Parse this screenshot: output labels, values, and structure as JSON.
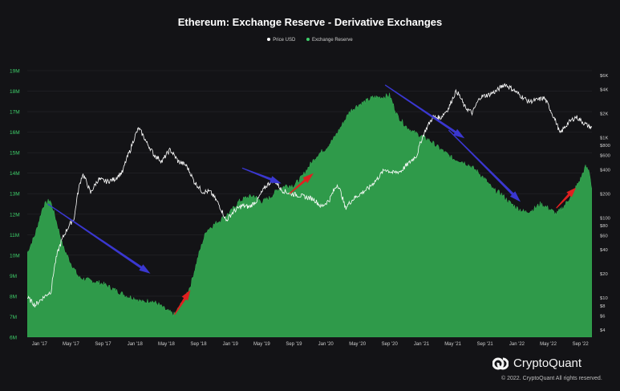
{
  "chart_data": {
    "type": "area",
    "title": "Ethereum: Exchange Reserve - Derivative Exchanges",
    "legend": [
      "Price USD",
      "Exchange Reserve"
    ],
    "legend_position": "top-center",
    "colors": {
      "background": "#131316",
      "reserve_fill": "#2f9a4a",
      "price_line": "#ffffff",
      "left_axis_text": "#3ecf6a",
      "right_axis_text": "#cfcfcf",
      "grid": "#26262b",
      "trend_down": "#3a37d0",
      "trend_up": "#e02020"
    },
    "x_ticks": [
      "Jan '17",
      "May '17",
      "Sep '17",
      "Jan '18",
      "May '18",
      "Sep '18",
      "Jan '19",
      "May '19",
      "Sep '19",
      "Jan '20",
      "May '20",
      "Sep '20",
      "Jan '21",
      "May '21",
      "Sep '21",
      "Jan '22",
      "May '22",
      "Sep '22"
    ],
    "left_axis": {
      "label": "",
      "ylim": [
        6000000,
        19000000
      ],
      "ticks": [
        {
          "v": 6000000,
          "t": "6M"
        },
        {
          "v": 7000000,
          "t": "7M"
        },
        {
          "v": 8000000,
          "t": "8M"
        },
        {
          "v": 9000000,
          "t": "9M"
        },
        {
          "v": 10000000,
          "t": "10M"
        },
        {
          "v": 11000000,
          "t": "11M"
        },
        {
          "v": 12000000,
          "t": "12M"
        },
        {
          "v": 13000000,
          "t": "13M"
        },
        {
          "v": 14000000,
          "t": "14M"
        },
        {
          "v": 15000000,
          "t": "15M"
        },
        {
          "v": 16000000,
          "t": "16M"
        },
        {
          "v": 17000000,
          "t": "17M"
        },
        {
          "v": 18000000,
          "t": "18M"
        },
        {
          "v": 19000000,
          "t": "19M"
        }
      ]
    },
    "right_axis": {
      "label": "",
      "scale": "log",
      "ticks": [
        {
          "v": 4,
          "t": "$4"
        },
        {
          "v": 6,
          "t": "$6"
        },
        {
          "v": 8,
          "t": "$8"
        },
        {
          "v": 10,
          "t": "$10"
        },
        {
          "v": 20,
          "t": "$20"
        },
        {
          "v": 40,
          "t": "$40"
        },
        {
          "v": 60,
          "t": "$60"
        },
        {
          "v": 80,
          "t": "$80"
        },
        {
          "v": 100,
          "t": "$100"
        },
        {
          "v": 200,
          "t": "$200"
        },
        {
          "v": 400,
          "t": "$400"
        },
        {
          "v": 600,
          "t": "$600"
        },
        {
          "v": 800,
          "t": "$800"
        },
        {
          "v": 1000,
          "t": "$1K"
        },
        {
          "v": 2000,
          "t": "$2K"
        },
        {
          "v": 4000,
          "t": "$4K"
        },
        {
          "v": 6000,
          "t": "$6K"
        }
      ]
    },
    "series": [
      {
        "name": "Exchange Reserve",
        "points": [
          [
            "2016-11-15",
            10100000
          ],
          [
            "2016-12-15",
            11000000
          ],
          [
            "2017-01-15",
            12400000
          ],
          [
            "2017-02-10",
            12700000
          ],
          [
            "2017-03-01",
            11900000
          ],
          [
            "2017-04-01",
            10400000
          ],
          [
            "2017-05-01",
            9600000
          ],
          [
            "2017-06-01",
            8900000
          ],
          [
            "2017-07-01",
            8800000
          ],
          [
            "2017-08-01",
            8700000
          ],
          [
            "2017-09-01",
            8600000
          ],
          [
            "2017-10-01",
            8400000
          ],
          [
            "2017-11-01",
            8200000
          ],
          [
            "2017-12-01",
            8000000
          ],
          [
            "2018-01-01",
            7900000
          ],
          [
            "2018-02-01",
            7700000
          ],
          [
            "2018-03-01",
            7800000
          ],
          [
            "2018-04-01",
            7600000
          ],
          [
            "2018-05-01",
            7300000
          ],
          [
            "2018-06-01",
            7100000
          ],
          [
            "2018-07-01",
            7700000
          ],
          [
            "2018-08-01",
            8500000
          ],
          [
            "2018-09-01",
            10000000
          ],
          [
            "2018-10-01",
            11200000
          ],
          [
            "2018-11-01",
            11500000
          ],
          [
            "2018-12-01",
            11800000
          ],
          [
            "2019-01-01",
            12100000
          ],
          [
            "2019-02-01",
            12600000
          ],
          [
            "2019-03-01",
            12800000
          ],
          [
            "2019-04-01",
            12900000
          ],
          [
            "2019-05-01",
            12600000
          ],
          [
            "2019-06-01",
            12800000
          ],
          [
            "2019-07-01",
            13200000
          ],
          [
            "2019-08-01",
            13400000
          ],
          [
            "2019-09-01",
            13400000
          ],
          [
            "2019-10-01",
            13800000
          ],
          [
            "2019-11-01",
            14400000
          ],
          [
            "2019-12-01",
            14900000
          ],
          [
            "2020-01-01",
            15200000
          ],
          [
            "2020-02-01",
            15700000
          ],
          [
            "2020-03-01",
            16300000
          ],
          [
            "2020-04-01",
            17000000
          ],
          [
            "2020-05-01",
            17300000
          ],
          [
            "2020-06-01",
            17500000
          ],
          [
            "2020-07-01",
            17700000
          ],
          [
            "2020-08-01",
            17700000
          ],
          [
            "2020-09-01",
            17800000
          ],
          [
            "2020-10-01",
            16800000
          ],
          [
            "2020-11-01",
            16300000
          ],
          [
            "2020-12-01",
            16000000
          ],
          [
            "2021-01-01",
            15800000
          ],
          [
            "2021-02-01",
            15600000
          ],
          [
            "2021-03-01",
            15300000
          ],
          [
            "2021-04-01",
            15000000
          ],
          [
            "2021-05-01",
            14700000
          ],
          [
            "2021-06-01",
            14600000
          ],
          [
            "2021-07-01",
            14400000
          ],
          [
            "2021-08-01",
            14100000
          ],
          [
            "2021-09-01",
            13700000
          ],
          [
            "2021-10-01",
            13200000
          ],
          [
            "2021-11-01",
            13000000
          ],
          [
            "2021-12-01",
            12600000
          ],
          [
            "2022-01-01",
            12300000
          ],
          [
            "2022-02-01",
            12100000
          ],
          [
            "2022-03-01",
            12200000
          ],
          [
            "2022-04-01",
            12500000
          ],
          [
            "2022-05-01",
            12300000
          ],
          [
            "2022-06-01",
            12000000
          ],
          [
            "2022-07-01",
            12400000
          ],
          [
            "2022-08-01",
            13000000
          ],
          [
            "2022-09-01",
            13700000
          ],
          [
            "2022-09-20",
            14300000
          ],
          [
            "2022-10-05",
            14100000
          ],
          [
            "2022-10-15",
            13200000
          ]
        ]
      },
      {
        "name": "Price USD",
        "points": [
          [
            "2016-11-15",
            10
          ],
          [
            "2016-12-15",
            8
          ],
          [
            "2017-01-15",
            10
          ],
          [
            "2017-02-15",
            12
          ],
          [
            "2017-03-15",
            40
          ],
          [
            "2017-04-15",
            70
          ],
          [
            "2017-05-15",
            100
          ],
          [
            "2017-06-15",
            350
          ],
          [
            "2017-07-15",
            200
          ],
          [
            "2017-08-15",
            300
          ],
          [
            "2017-09-15",
            280
          ],
          [
            "2017-10-15",
            300
          ],
          [
            "2017-11-15",
            370
          ],
          [
            "2017-12-15",
            700
          ],
          [
            "2018-01-15",
            1300
          ],
          [
            "2018-02-15",
            850
          ],
          [
            "2018-03-15",
            600
          ],
          [
            "2018-04-15",
            500
          ],
          [
            "2018-05-15",
            700
          ],
          [
            "2018-06-15",
            500
          ],
          [
            "2018-07-15",
            450
          ],
          [
            "2018-08-15",
            280
          ],
          [
            "2018-09-15",
            210
          ],
          [
            "2018-10-15",
            210
          ],
          [
            "2018-11-15",
            150
          ],
          [
            "2018-12-15",
            90
          ],
          [
            "2019-01-15",
            120
          ],
          [
            "2019-02-15",
            140
          ],
          [
            "2019-03-15",
            135
          ],
          [
            "2019-04-15",
            165
          ],
          [
            "2019-05-15",
            240
          ],
          [
            "2019-06-15",
            300
          ],
          [
            "2019-07-15",
            220
          ],
          [
            "2019-08-15",
            200
          ],
          [
            "2019-09-15",
            190
          ],
          [
            "2019-10-15",
            180
          ],
          [
            "2019-11-15",
            170
          ],
          [
            "2019-12-15",
            135
          ],
          [
            "2020-01-15",
            165
          ],
          [
            "2020-02-15",
            260
          ],
          [
            "2020-03-15",
            130
          ],
          [
            "2020-04-15",
            170
          ],
          [
            "2020-05-15",
            200
          ],
          [
            "2020-06-15",
            235
          ],
          [
            "2020-07-15",
            300
          ],
          [
            "2020-08-15",
            400
          ],
          [
            "2020-09-15",
            360
          ],
          [
            "2020-10-15",
            380
          ],
          [
            "2020-11-15",
            480
          ],
          [
            "2020-12-15",
            600
          ],
          [
            "2021-01-15",
            1200
          ],
          [
            "2021-02-15",
            1800
          ],
          [
            "2021-03-15",
            1750
          ],
          [
            "2021-04-15",
            2300
          ],
          [
            "2021-05-15",
            3800
          ],
          [
            "2021-06-15",
            2400
          ],
          [
            "2021-07-15",
            2000
          ],
          [
            "2021-08-15",
            3200
          ],
          [
            "2021-09-15",
            3400
          ],
          [
            "2021-10-15",
            3800
          ],
          [
            "2021-11-15",
            4600
          ],
          [
            "2021-12-15",
            4000
          ],
          [
            "2022-01-15",
            3300
          ],
          [
            "2022-02-15",
            2800
          ],
          [
            "2022-03-15",
            2900
          ],
          [
            "2022-04-15",
            3100
          ],
          [
            "2022-05-15",
            2000
          ],
          [
            "2022-06-15",
            1100
          ],
          [
            "2022-07-15",
            1500
          ],
          [
            "2022-08-15",
            1800
          ],
          [
            "2022-09-15",
            1500
          ],
          [
            "2022-10-15",
            1300
          ]
        ]
      }
    ],
    "annotations": [
      {
        "type": "arrow",
        "color": "trend_down",
        "from": [
          "2017-02-01",
          12500000
        ],
        "to": [
          "2018-03-01",
          9100000
        ]
      },
      {
        "type": "arrow",
        "color": "trend_up",
        "from": [
          "2018-06-01",
          7100000
        ],
        "to": [
          "2018-08-01",
          8300000
        ]
      },
      {
        "type": "arrow",
        "color": "trend_down",
        "from": [
          "2019-02-15",
          14250000
        ],
        "to": [
          "2019-07-15",
          13500000
        ]
      },
      {
        "type": "arrow",
        "color": "trend_up",
        "from": [
          "2019-08-15",
          13000000
        ],
        "to": [
          "2019-11-15",
          14000000
        ]
      },
      {
        "type": "arrow",
        "color": "trend_down",
        "from": [
          "2020-08-15",
          18300000
        ],
        "to": [
          "2021-06-15",
          15700000
        ]
      },
      {
        "type": "arrow",
        "color": "trend_down",
        "from": [
          "2021-04-15",
          16100000
        ],
        "to": [
          "2022-01-15",
          12600000
        ]
      },
      {
        "type": "arrow",
        "color": "trend_up",
        "from": [
          "2022-06-01",
          12300000
        ],
        "to": [
          "2022-08-15",
          13300000
        ]
      }
    ]
  },
  "branding": {
    "logo_text": "CryptoQuant",
    "copyright": "© 2022. CryptoQuant All rights reserved."
  }
}
